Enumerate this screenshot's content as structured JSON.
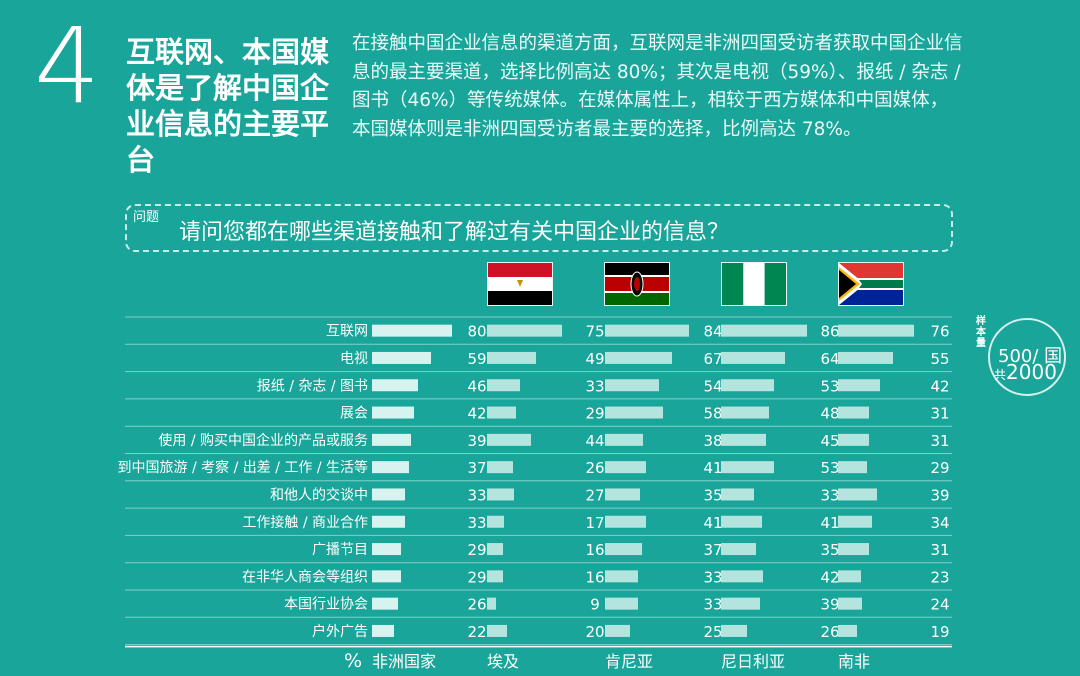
{
  "header": {
    "number": "4",
    "headline": "互联网、本国媒体是了解中国企业信息的主要平台",
    "description": "在接触中国企业信息的渠道方面，互联网是非洲四国受访者获取中国企业信息的最主要渠道，选择比例高达 80%；其次是电视（59%）、报纸 / 杂志 / 图书（46%）等传统媒体。在媒体属性上，相较于西方媒体和中国媒体，本国媒体则是非洲四国受访者最主要的选择，比例高达 78%。"
  },
  "question": {
    "tag": "问题",
    "text": "请问您都在哪些渠道接触和了解过有关中国企业的信息？"
  },
  "flags": [
    "egypt-flag",
    "kenya-flag",
    "nigeria-flag",
    "south-africa-flag"
  ],
  "sample": {
    "label": "样本量",
    "per_country": "500/ 国",
    "total_prefix": "共",
    "total": "2000"
  },
  "colors": {
    "background": "#1aa59a",
    "bar_overall": "#d7f3f0",
    "bar_country": "#b4e4de",
    "divider": "#7fd0c7"
  },
  "chart_data": {
    "type": "bar",
    "unit": "%",
    "categories": [
      "互联网",
      "电视",
      "报纸 / 杂志 / 图书",
      "展会",
      "使用 / 购买中国企业的产品或服务",
      "到中国旅游 / 考察 / 出差 / 工作 / 生活等",
      "和他人的交谈中",
      "工作接触 / 商业合作",
      "广播节目",
      "在非华人商会等组织",
      "本国行业协会",
      "户外广告"
    ],
    "series": [
      {
        "name": "非洲国家",
        "values": [
          80,
          59,
          46,
          42,
          39,
          37,
          33,
          33,
          29,
          29,
          26,
          22
        ]
      },
      {
        "name": "埃及",
        "values": [
          75,
          49,
          33,
          29,
          44,
          26,
          27,
          17,
          16,
          16,
          9,
          20
        ]
      },
      {
        "name": "肯尼亚",
        "values": [
          84,
          67,
          54,
          58,
          38,
          41,
          35,
          41,
          37,
          33,
          33,
          25
        ]
      },
      {
        "name": "尼日利亚",
        "values": [
          86,
          64,
          53,
          48,
          45,
          53,
          33,
          41,
          35,
          42,
          39,
          26
        ]
      },
      {
        "name": "南非",
        "values": [
          76,
          55,
          42,
          31,
          31,
          29,
          39,
          34,
          31,
          23,
          24,
          19
        ]
      }
    ]
  }
}
